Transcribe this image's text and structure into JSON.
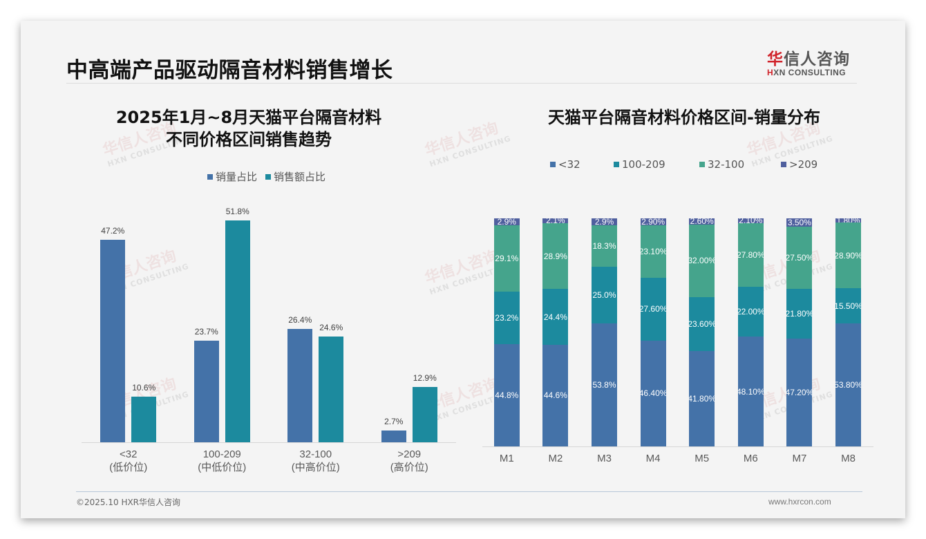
{
  "header": {
    "title": "中高端产品驱动隔音材料销售增长",
    "logo_cn_red": "华",
    "logo_cn_rest": "信人咨询",
    "logo_en_red": "H",
    "logo_en_rest": "XN CONSULTING"
  },
  "watermark": {
    "cn": "华信人咨询",
    "en": "HXN CONSULTING"
  },
  "footer": {
    "copyright": "©2025.10 HXR华信人咨询",
    "website": "www.hxrcon.com"
  },
  "colors": {
    "volume": "#4472a8",
    "revenue": "#1c8a9e",
    "lt32": "#4472a8",
    "r100_209": "#1c8a9e",
    "r32_100": "#45a48c",
    "gt209": "#4f5f9e"
  },
  "chart_data": [
    {
      "type": "bar",
      "title": "2025年1月~8月天猫平台隔音材料\n不同价格区间销售趋势",
      "title_line1": "2025年1月~8月天猫平台隔音材料",
      "title_line2": "不同价格区间销售趋势",
      "categories": [
        "<32 (低价位)",
        "100-209 (中低价位)",
        "32-100 (中高价位)",
        ">209 (高价位)"
      ],
      "category_lines": [
        [
          "<32",
          "(低价位)"
        ],
        [
          "100-209",
          "(中低价位)"
        ],
        [
          "32-100",
          "(中高价位)"
        ],
        [
          ">209",
          "(高价位)"
        ]
      ],
      "series": [
        {
          "name": "销量占比",
          "values": [
            47.2,
            23.7,
            26.4,
            2.7
          ],
          "labels": [
            "47.2%",
            "23.7%",
            "26.4%",
            "2.7%"
          ]
        },
        {
          "name": "销售额占比",
          "values": [
            10.6,
            51.8,
            24.6,
            12.9
          ],
          "labels": [
            "10.6%",
            "51.8%",
            "24.6%",
            "12.9%"
          ]
        }
      ],
      "legend": [
        "销量占比",
        "销售额占比"
      ],
      "legend_position": "top",
      "xlabel": "",
      "ylabel": "",
      "ylim": [
        0,
        55
      ],
      "grid": false
    },
    {
      "type": "bar",
      "stacked": true,
      "percent": true,
      "title": "天猫平台隔音材料价格区间-销量分布",
      "categories": [
        "M1",
        "M2",
        "M3",
        "M4",
        "M5",
        "M6",
        "M7",
        "M8"
      ],
      "series": [
        {
          "name": "<32",
          "values": [
            44.8,
            44.6,
            53.8,
            46.4,
            41.8,
            48.1,
            47.2,
            53.8
          ],
          "labels": [
            "44.8%",
            "44.6%",
            "53.8%",
            "46.40%",
            "41.80%",
            "48.10%",
            "47.20%",
            "53.80%"
          ]
        },
        {
          "name": "100-209",
          "values": [
            23.2,
            24.4,
            25.0,
            27.6,
            23.6,
            22.0,
            21.8,
            15.5
          ],
          "labels": [
            "23.2%",
            "24.4%",
            "25.0%",
            "27.60%",
            "23.60%",
            "22.00%",
            "21.80%",
            "15.50%"
          ]
        },
        {
          "name": "32-100",
          "values": [
            29.1,
            28.9,
            18.3,
            23.1,
            32.0,
            27.8,
            27.5,
            28.9
          ],
          "labels": [
            "29.1%",
            "28.9%",
            "18.3%",
            "23.10%",
            "32.00%",
            "27.80%",
            "27.50%",
            "28.90%"
          ]
        },
        {
          "name": ">209",
          "values": [
            2.9,
            2.1,
            2.9,
            2.9,
            2.6,
            2.1,
            3.5,
            1.8
          ],
          "labels": [
            "2.9%",
            "2.1%",
            "2.9%",
            "2.90%",
            "2.60%",
            "2.10%",
            "3.50%",
            "1.80%"
          ]
        }
      ],
      "legend": [
        "<32",
        "100-209",
        "32-100",
        ">209"
      ],
      "legend_position": "top",
      "xlabel": "",
      "ylabel": "",
      "ylim": [
        0,
        100
      ],
      "grid": false
    }
  ]
}
